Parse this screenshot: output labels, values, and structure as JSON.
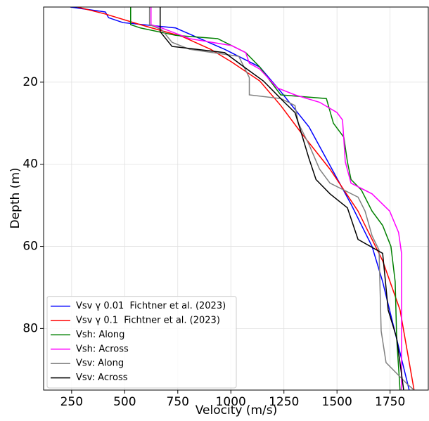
{
  "chart_data": {
    "type": "line",
    "xlabel": "Velocity (m/s)",
    "ylabel": "Depth (m)",
    "xlim": [
      118,
      1930
    ],
    "ylim": [
      1.7,
      95
    ],
    "invert_y": true,
    "xticks": [
      250,
      500,
      750,
      1000,
      1250,
      1500,
      1750
    ],
    "yticks": [
      20,
      40,
      60,
      80
    ],
    "grid": true,
    "legend": "lower left",
    "series": [
      {
        "name": "Vsv γ 0.01  Fichtner et al. (2023)",
        "color": "#0000ff",
        "x": [
          244,
          409,
          424,
          492,
          740,
          971,
          1136,
          1235,
          1368,
          1467,
          1566,
          1665,
          1715,
          1840
        ],
        "y": [
          1.7,
          2.9,
          4.3,
          5.5,
          6.8,
          12,
          16.3,
          22.3,
          30.9,
          40.3,
          49.7,
          60,
          68.6,
          95
        ]
      },
      {
        "name": "Vsv γ 0.1  Fichtner et al. (2023)",
        "color": "#ff0000",
        "x": [
          277,
          409,
          574,
          772,
          905,
          1004,
          1136,
          1235,
          1335,
          1467,
          1599,
          1715,
          1797,
          1863
        ],
        "y": [
          1.7,
          3.4,
          6,
          8.9,
          12,
          15.1,
          19.7,
          25.7,
          32.6,
          41.2,
          51.4,
          63.5,
          75.5,
          95
        ]
      },
      {
        "name": "Vsh: Along",
        "color": "#008000",
        "x": [
          528,
          528,
          574,
          740,
          938,
          1070,
          1136,
          1235,
          1450,
          1483,
          1532,
          1549,
          1566,
          1615,
          1665,
          1715,
          1754,
          1774,
          1781,
          1797
        ],
        "y": [
          1.7,
          6,
          6.8,
          8.6,
          9.4,
          12.8,
          16.3,
          23.1,
          24,
          30,
          33.4,
          39.4,
          43.7,
          46.3,
          51.4,
          54.9,
          60,
          68.6,
          82.3,
          95
        ]
      },
      {
        "name": "Vsh: Across",
        "color": "#ff00ff",
        "x": [
          624,
          624,
          674,
          806,
          1004,
          1070,
          1087,
          1136,
          1219,
          1302,
          1418,
          1500,
          1526,
          1539,
          1566,
          1665,
          1748,
          1790,
          1804,
          1804
        ],
        "y": [
          1.7,
          6,
          6.8,
          9.4,
          11.1,
          12.8,
          15.4,
          16.8,
          21.4,
          23.1,
          24.9,
          27.4,
          29.2,
          39.4,
          44.6,
          47.2,
          51.4,
          56.6,
          61.7,
          95
        ]
      },
      {
        "name": "Vsv: Along",
        "color": "#808080",
        "x": [
          617,
          617,
          674,
          723,
          806,
          1037,
          1087,
          1087,
          1235,
          1302,
          1318,
          1368,
          1418,
          1467,
          1599,
          1632,
          1665,
          1698,
          1708,
          1731,
          1830,
          1863
        ],
        "y": [
          1.7,
          6,
          7.2,
          10.3,
          12,
          13.7,
          18.9,
          23.1,
          24,
          25.7,
          30,
          35.2,
          41.2,
          44.6,
          48,
          51.4,
          57.4,
          60.9,
          80.6,
          88.3,
          93.5,
          95
        ]
      },
      {
        "name": "Vsv: Across",
        "color": "#000000",
        "x": [
          667,
          667,
          723,
          971,
          1070,
          1153,
          1252,
          1302,
          1318,
          1368,
          1401,
          1467,
          1549,
          1599,
          1715,
          1725,
          1741,
          1781,
          1814
        ],
        "y": [
          1.7,
          7.7,
          11.3,
          12.8,
          16.6,
          19.7,
          24.9,
          27.4,
          30,
          38.6,
          43.7,
          47.2,
          50.6,
          58.3,
          61.7,
          66.9,
          75.5,
          82.3,
          95
        ]
      }
    ]
  }
}
